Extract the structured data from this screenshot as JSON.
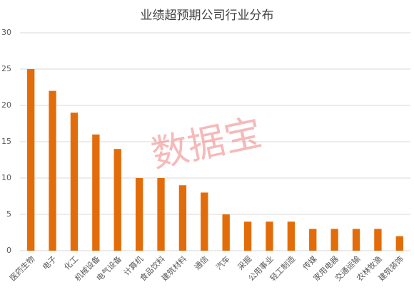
{
  "chart_data": {
    "type": "bar",
    "title": "业绩超预期公司行业分布",
    "watermark": "数据宝",
    "categories": [
      "医药生物",
      "电子",
      "化工",
      "机械设备",
      "电气设备",
      "计算机",
      "食品饮料",
      "建筑材料",
      "通信",
      "汽车",
      "采掘",
      "公用事业",
      "轻工制造",
      "传媒",
      "家用电器",
      "交通运输",
      "农林牧渔",
      "建筑装饰"
    ],
    "values": [
      25,
      22,
      19,
      16,
      14,
      10,
      10,
      9,
      8,
      5,
      4,
      4,
      4,
      3,
      3,
      3,
      3,
      2
    ],
    "color": "#e36c0a",
    "ylim": [
      0,
      30
    ],
    "yticks": [
      0,
      5,
      10,
      15,
      20,
      25,
      30
    ],
    "grid": true
  }
}
